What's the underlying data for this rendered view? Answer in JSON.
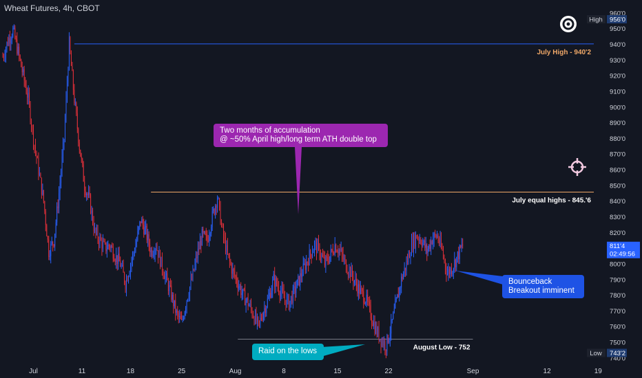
{
  "header": {
    "title": "Wheat Futures, 4h, CBOT"
  },
  "chart_data": {
    "type": "candlestick",
    "symbol": "Wheat Futures",
    "interval": "4h",
    "exchange": "CBOT",
    "y_ticks": [
      "960'0",
      "950'0",
      "940'0",
      "930'0",
      "920'0",
      "910'0",
      "900'0",
      "890'0",
      "880'0",
      "870'0",
      "860'0",
      "850'0",
      "840'0",
      "830'0",
      "820'0",
      "810'0",
      "800'0",
      "790'0",
      "780'0",
      "770'0",
      "760'0",
      "750'0",
      "740'0"
    ],
    "y_tick_values": [
      960,
      950,
      940,
      930,
      920,
      910,
      900,
      890,
      880,
      870,
      860,
      850,
      840,
      830,
      820,
      810,
      800,
      790,
      780,
      770,
      760,
      750,
      740
    ],
    "x_ticks": [
      "Jul",
      "11",
      "18",
      "25",
      "Aug",
      "8",
      "15",
      "22",
      "Sep",
      "12",
      "19"
    ],
    "ylim": [
      736,
      963
    ],
    "price_path": [
      [
        0,
        932
      ],
      [
        1,
        942
      ],
      [
        2,
        949
      ],
      [
        3,
        935
      ],
      [
        4,
        920
      ],
      [
        5,
        905
      ],
      [
        6,
        880
      ],
      [
        7,
        860
      ],
      [
        8,
        840
      ],
      [
        9,
        808
      ],
      [
        10,
        815
      ],
      [
        11,
        845
      ],
      [
        12,
        880
      ],
      [
        13,
        940
      ],
      [
        14,
        905
      ],
      [
        15,
        875
      ],
      [
        16,
        850
      ],
      [
        17,
        840
      ],
      [
        18,
        820
      ],
      [
        19,
        815
      ],
      [
        20,
        810
      ],
      [
        21,
        812
      ],
      [
        22,
        805
      ],
      [
        23,
        800
      ],
      [
        24,
        788
      ],
      [
        25,
        800
      ],
      [
        26,
        812
      ],
      [
        27,
        828
      ],
      [
        28,
        820
      ],
      [
        29,
        808
      ],
      [
        30,
        812
      ],
      [
        31,
        800
      ],
      [
        32,
        790
      ],
      [
        33,
        780
      ],
      [
        34,
        768
      ],
      [
        35,
        762
      ],
      [
        36,
        778
      ],
      [
        37,
        790
      ],
      [
        38,
        805
      ],
      [
        39,
        818
      ],
      [
        40,
        815
      ],
      [
        41,
        830
      ],
      [
        42,
        843
      ],
      [
        43,
        820
      ],
      [
        44,
        805
      ],
      [
        45,
        795
      ],
      [
        46,
        788
      ],
      [
        47,
        780
      ],
      [
        48,
        775
      ],
      [
        49,
        768
      ],
      [
        50,
        760
      ],
      [
        51,
        770
      ],
      [
        52,
        778
      ],
      [
        53,
        790
      ],
      [
        54,
        785
      ],
      [
        55,
        778
      ],
      [
        56,
        775
      ],
      [
        57,
        782
      ],
      [
        58,
        790
      ],
      [
        59,
        798
      ],
      [
        60,
        805
      ],
      [
        61,
        812
      ],
      [
        62,
        808
      ],
      [
        63,
        800
      ],
      [
        64,
        805
      ],
      [
        65,
        812
      ],
      [
        66,
        808
      ],
      [
        67,
        800
      ],
      [
        68,
        795
      ],
      [
        69,
        788
      ],
      [
        70,
        782
      ],
      [
        71,
        778
      ],
      [
        72,
        768
      ],
      [
        73,
        758
      ],
      [
        74,
        752
      ],
      [
        75,
        748
      ],
      [
        76,
        760
      ],
      [
        77,
        775
      ],
      [
        78,
        790
      ],
      [
        79,
        800
      ],
      [
        80,
        812
      ],
      [
        81,
        818
      ],
      [
        82,
        815
      ],
      [
        83,
        808
      ],
      [
        84,
        816
      ],
      [
        85,
        818
      ],
      [
        86,
        808
      ],
      [
        87,
        794
      ],
      [
        88,
        798
      ],
      [
        89,
        805
      ],
      [
        90,
        812
      ]
    ],
    "last_bar_index": 90,
    "x_domain_bars": [
      0,
      117
    ],
    "x_tick_bars": [
      6,
      15.5,
      25,
      35,
      45.5,
      55,
      65.5,
      75.5,
      92,
      106.5,
      116.5
    ],
    "levels": [
      {
        "label": "July High - 940'2",
        "value": 940.25,
        "color": "#2962ff",
        "label_color": "#f0a868",
        "from_bar": 14
      },
      {
        "label": "July equal highs - 845.'6",
        "value": 845.75,
        "color": "#f0a868",
        "label_color": "#ffffff",
        "from_bar": 29
      },
      {
        "label": "August Low - 752",
        "value": 752,
        "color": "#787b86",
        "label_color": "#ffffff",
        "from_bar": 46,
        "to_bar": 92
      }
    ],
    "price_tags": {
      "high_label": "High",
      "high_value": "956'0",
      "high_price": 956,
      "low_label": "Low",
      "low_value": "743'2",
      "low_price": 743.25,
      "last_value": "811'4",
      "last_price": 811.5,
      "countdown": "02:49:56"
    },
    "colors": {
      "up": "#2962ff",
      "down": "#e0303a",
      "background": "#131722",
      "axis_text": "#d1d4dc"
    }
  },
  "annotations": {
    "accumulation": {
      "line1": "Two months of accumulation",
      "line2": "@ ~50% April high/long term ATH double top",
      "color": "#9c27b0"
    },
    "raid": {
      "text": "Raid on the lows",
      "color": "#00acc1"
    },
    "bounce": {
      "line1": "Bounceback",
      "line2": "Breakout imminent",
      "color": "#1e53e5"
    }
  },
  "icons": [
    "target-icon",
    "crosshair-icon"
  ]
}
